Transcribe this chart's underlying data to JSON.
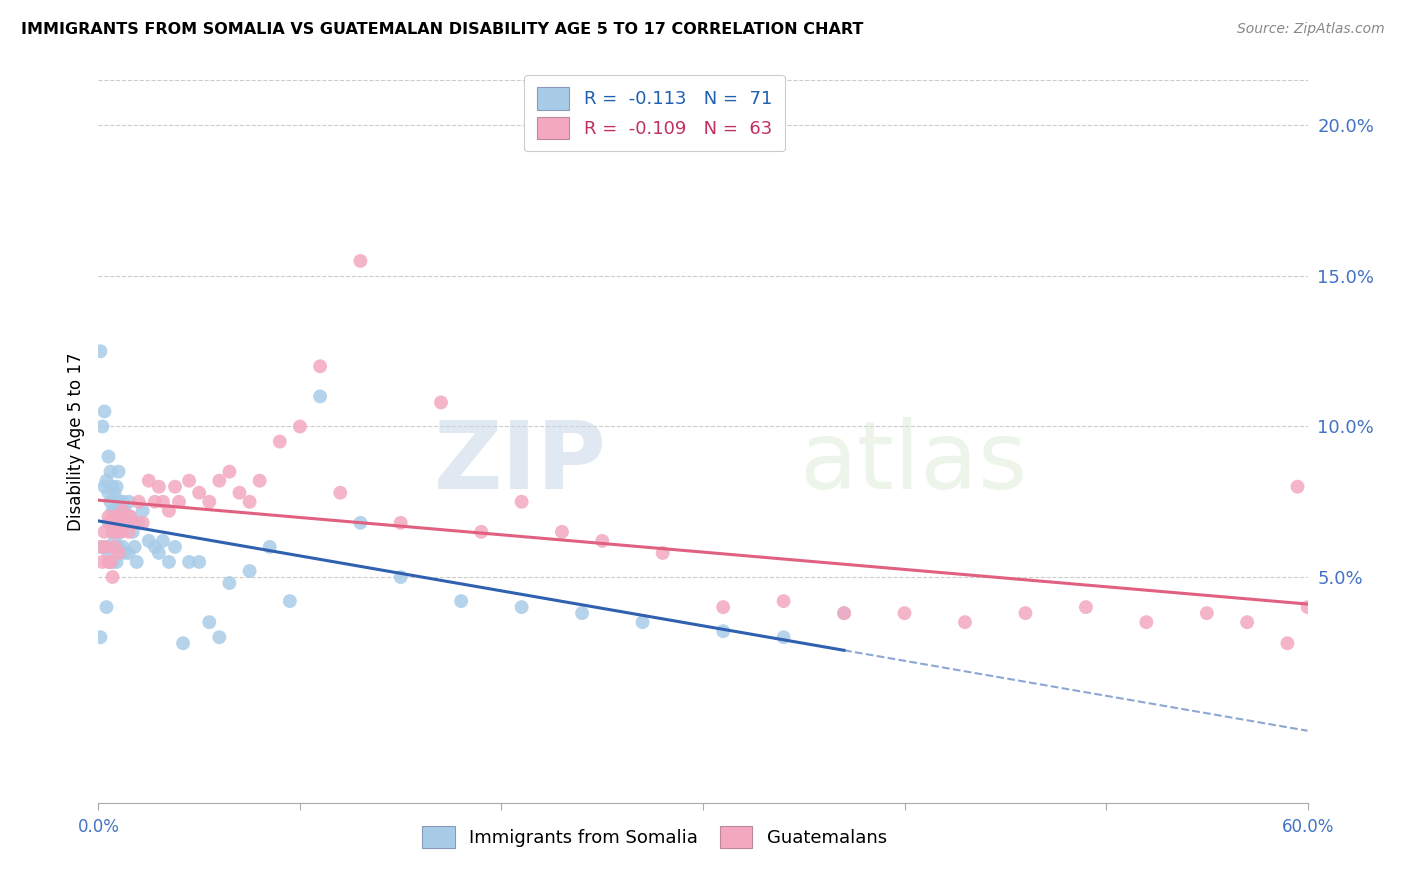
{
  "title": "IMMIGRANTS FROM SOMALIA VS GUATEMALAN DISABILITY AGE 5 TO 17 CORRELATION CHART",
  "source": "Source: ZipAtlas.com",
  "ylabel": "Disability Age 5 to 17",
  "yticks_labels": [
    "20.0%",
    "15.0%",
    "10.0%",
    "5.0%"
  ],
  "ytick_vals": [
    0.2,
    0.15,
    0.1,
    0.05
  ],
  "xmin": 0.0,
  "xmax": 0.6,
  "ymin": -0.025,
  "ymax": 0.215,
  "somalia_color": "#a8cce8",
  "guatemala_color": "#f4a8c0",
  "somalia_trend_color": "#3060b0",
  "guatemala_trend_color": "#e06080",
  "background_color": "#ffffff",
  "watermark_zip": "ZIP",
  "watermark_atlas": "atlas",
  "legend1_label": "R =  -0.113   N =  71",
  "legend2_label": "R =  -0.109   N =  63",
  "legend_bottom1": "Immigrants from Somalia",
  "legend_bottom2": "Guatemalans",
  "somalia_points_x": [
    0.001,
    0.001,
    0.002,
    0.002,
    0.003,
    0.003,
    0.003,
    0.004,
    0.004,
    0.004,
    0.005,
    0.005,
    0.005,
    0.005,
    0.006,
    0.006,
    0.006,
    0.006,
    0.007,
    0.007,
    0.007,
    0.007,
    0.008,
    0.008,
    0.008,
    0.009,
    0.009,
    0.009,
    0.01,
    0.01,
    0.01,
    0.011,
    0.011,
    0.012,
    0.012,
    0.013,
    0.013,
    0.014,
    0.015,
    0.015,
    0.016,
    0.017,
    0.018,
    0.019,
    0.02,
    0.022,
    0.025,
    0.028,
    0.03,
    0.032,
    0.035,
    0.038,
    0.042,
    0.045,
    0.05,
    0.055,
    0.06,
    0.065,
    0.075,
    0.085,
    0.095,
    0.11,
    0.13,
    0.15,
    0.18,
    0.21,
    0.24,
    0.27,
    0.31,
    0.34,
    0.37
  ],
  "somalia_points_y": [
    0.125,
    0.03,
    0.1,
    0.06,
    0.105,
    0.08,
    0.06,
    0.082,
    0.06,
    0.04,
    0.09,
    0.078,
    0.068,
    0.058,
    0.085,
    0.075,
    0.068,
    0.055,
    0.08,
    0.072,
    0.065,
    0.055,
    0.078,
    0.072,
    0.062,
    0.08,
    0.07,
    0.055,
    0.085,
    0.075,
    0.06,
    0.075,
    0.065,
    0.075,
    0.06,
    0.072,
    0.058,
    0.068,
    0.075,
    0.058,
    0.07,
    0.065,
    0.06,
    0.055,
    0.068,
    0.072,
    0.062,
    0.06,
    0.058,
    0.062,
    0.055,
    0.06,
    0.028,
    0.055,
    0.055,
    0.035,
    0.03,
    0.048,
    0.052,
    0.06,
    0.042,
    0.11,
    0.068,
    0.05,
    0.042,
    0.04,
    0.038,
    0.035,
    0.032,
    0.03,
    0.038
  ],
  "guatemala_points_x": [
    0.001,
    0.002,
    0.003,
    0.004,
    0.005,
    0.005,
    0.006,
    0.006,
    0.007,
    0.007,
    0.008,
    0.008,
    0.009,
    0.01,
    0.01,
    0.011,
    0.012,
    0.013,
    0.015,
    0.016,
    0.018,
    0.02,
    0.022,
    0.025,
    0.028,
    0.03,
    0.032,
    0.035,
    0.038,
    0.04,
    0.045,
    0.05,
    0.055,
    0.06,
    0.065,
    0.07,
    0.075,
    0.08,
    0.09,
    0.1,
    0.11,
    0.12,
    0.13,
    0.15,
    0.17,
    0.19,
    0.21,
    0.23,
    0.25,
    0.28,
    0.31,
    0.34,
    0.37,
    0.4,
    0.43,
    0.46,
    0.49,
    0.52,
    0.55,
    0.57,
    0.59,
    0.595,
    0.6
  ],
  "guatemala_points_y": [
    0.06,
    0.055,
    0.065,
    0.06,
    0.07,
    0.055,
    0.068,
    0.055,
    0.065,
    0.05,
    0.07,
    0.06,
    0.065,
    0.068,
    0.058,
    0.065,
    0.072,
    0.07,
    0.065,
    0.07,
    0.068,
    0.075,
    0.068,
    0.082,
    0.075,
    0.08,
    0.075,
    0.072,
    0.08,
    0.075,
    0.082,
    0.078,
    0.075,
    0.082,
    0.085,
    0.078,
    0.075,
    0.082,
    0.095,
    0.1,
    0.12,
    0.078,
    0.155,
    0.068,
    0.108,
    0.065,
    0.075,
    0.065,
    0.062,
    0.058,
    0.04,
    0.042,
    0.038,
    0.038,
    0.035,
    0.038,
    0.04,
    0.035,
    0.038,
    0.035,
    0.028,
    0.08,
    0.04
  ]
}
